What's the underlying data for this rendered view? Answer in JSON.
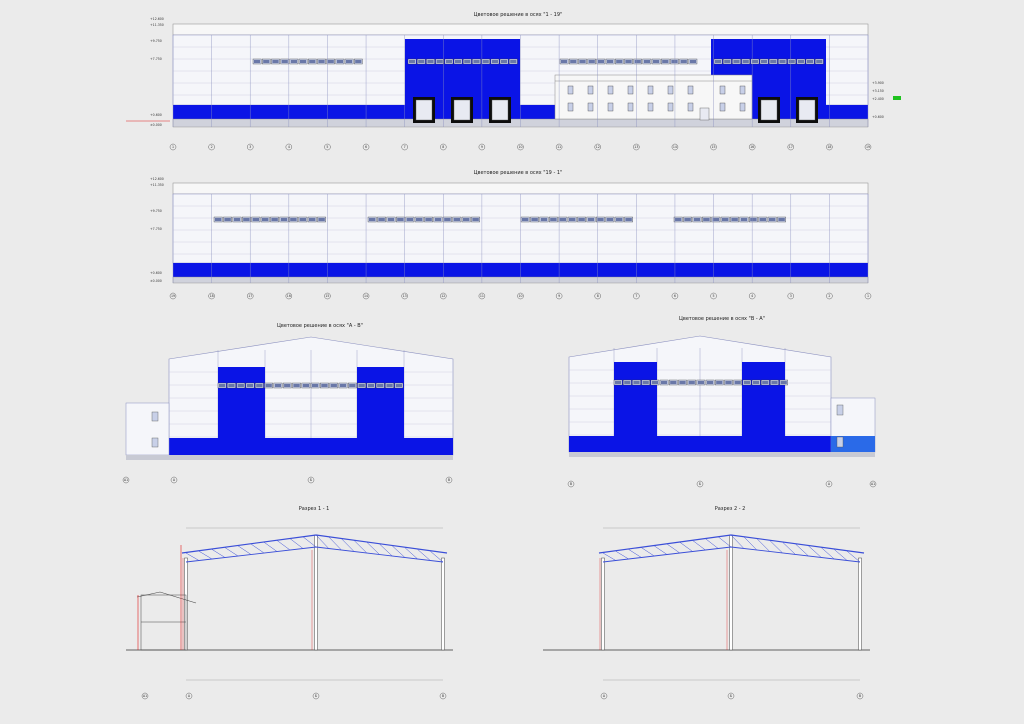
{
  "colors": {
    "blue": "#0a14e6",
    "panel": "#f5f6fa",
    "line": "#8a8fbf",
    "truss": "#3a4ed8",
    "red": "#e01c1c",
    "green": "#1fc21f"
  },
  "elevation1": {
    "title": "Цветовое решение в осях \"1 - 19\"",
    "axes": [
      "1",
      "2",
      "3",
      "4",
      "5",
      "6",
      "7",
      "8",
      "9",
      "10",
      "11",
      "12",
      "13",
      "14",
      "15",
      "16",
      "17",
      "18",
      "19"
    ]
  },
  "elevation2": {
    "title": "Цветовое решение в осях \"19 - 1\"",
    "axes": [
      "19",
      "18",
      "17",
      "16",
      "15",
      "14",
      "13",
      "12",
      "11",
      "10",
      "9",
      "8",
      "7",
      "6",
      "5",
      "4",
      "3",
      "2",
      "1"
    ]
  },
  "elevation3": {
    "title": "Цветовое решение в осях \"А - В\"",
    "axes": [
      "А1",
      "А",
      "Б",
      "В"
    ]
  },
  "elevation4": {
    "title": "Цветовое решение в осях \"В - А\"",
    "axes": [
      "В",
      "Б",
      "А",
      "А1"
    ]
  },
  "section1": {
    "title": "Разрез 1 - 1",
    "axes": [
      "А1",
      "А",
      "Б",
      "В"
    ]
  },
  "section2": {
    "title": "Разрез 2 - 2",
    "axes": [
      "А",
      "Б",
      "В"
    ]
  }
}
